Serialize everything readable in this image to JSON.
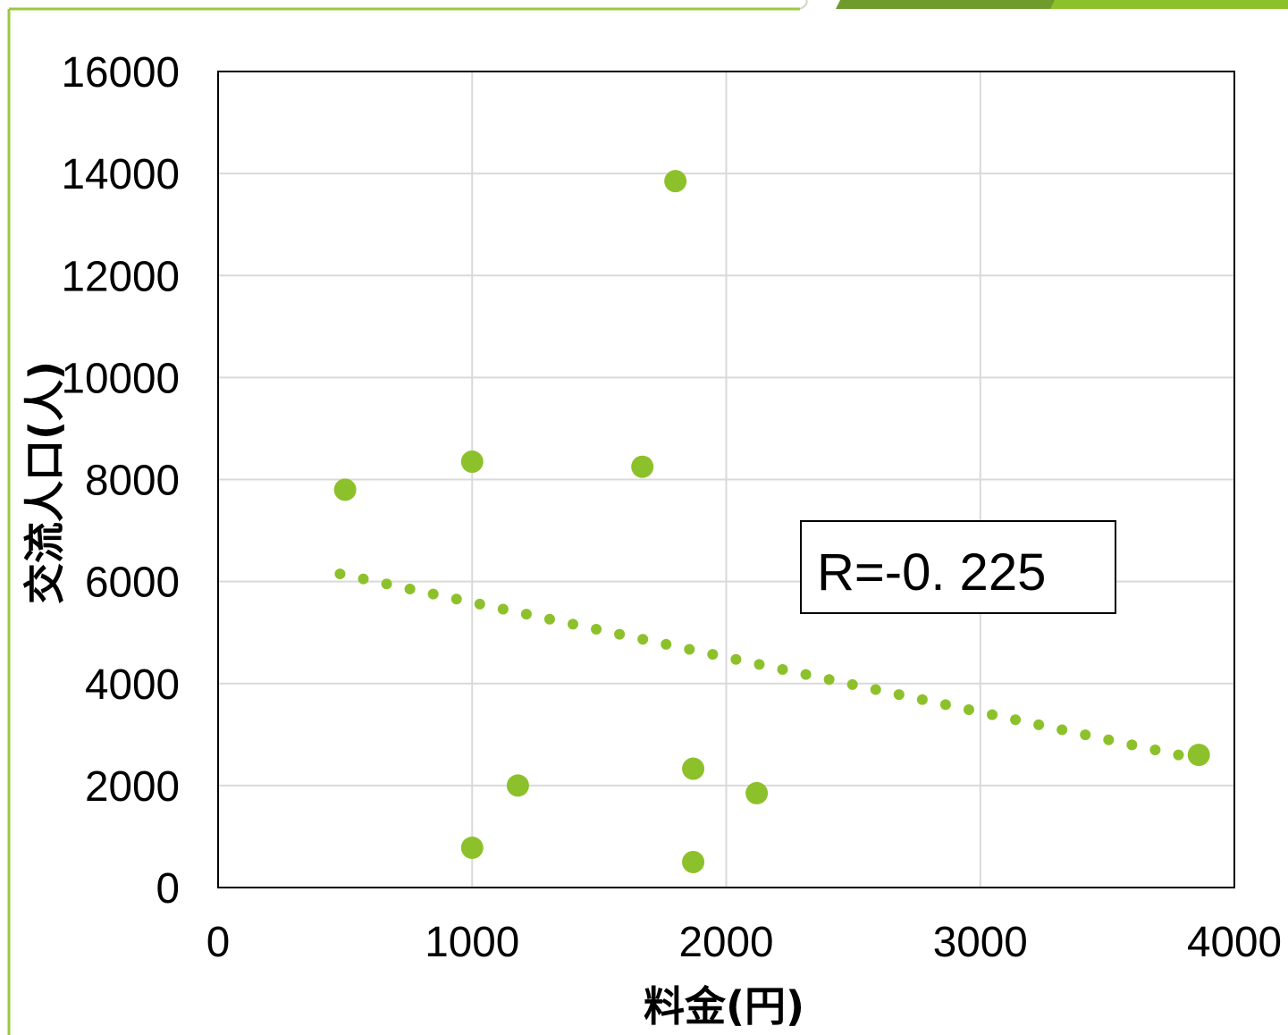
{
  "colors": {
    "accent": "#8dc12b",
    "accent_dark": "#6f9b2d",
    "frame": "#9ac93f",
    "grid": "#d9d9d9",
    "plot_border": "#000000"
  },
  "chart_data": {
    "type": "scatter",
    "xlabel": "料金(円)",
    "ylabel": "交流人口(人)",
    "xlim": [
      0,
      4000
    ],
    "ylim": [
      0,
      16000
    ],
    "x_ticks": [
      0,
      1000,
      2000,
      3000,
      4000
    ],
    "y_ticks": [
      0,
      2000,
      4000,
      6000,
      8000,
      10000,
      12000,
      14000,
      16000
    ],
    "grid": true,
    "series": [
      {
        "points": [
          {
            "x": 500,
            "y": 7800
          },
          {
            "x": 1000,
            "y": 8350
          },
          {
            "x": 1000,
            "y": 780
          },
          {
            "x": 1180,
            "y": 2000
          },
          {
            "x": 1670,
            "y": 8250
          },
          {
            "x": 1800,
            "y": 13850
          },
          {
            "x": 1870,
            "y": 2330
          },
          {
            "x": 1870,
            "y": 500
          },
          {
            "x": 2120,
            "y": 1850
          },
          {
            "x": 3860,
            "y": 2600
          }
        ]
      }
    ],
    "trendline": {
      "style": "dotted",
      "from": {
        "x": 480,
        "y": 6150
      },
      "to": {
        "x": 3780,
        "y": 2600
      }
    },
    "annotation": {
      "text": "R=-0. 225"
    }
  }
}
